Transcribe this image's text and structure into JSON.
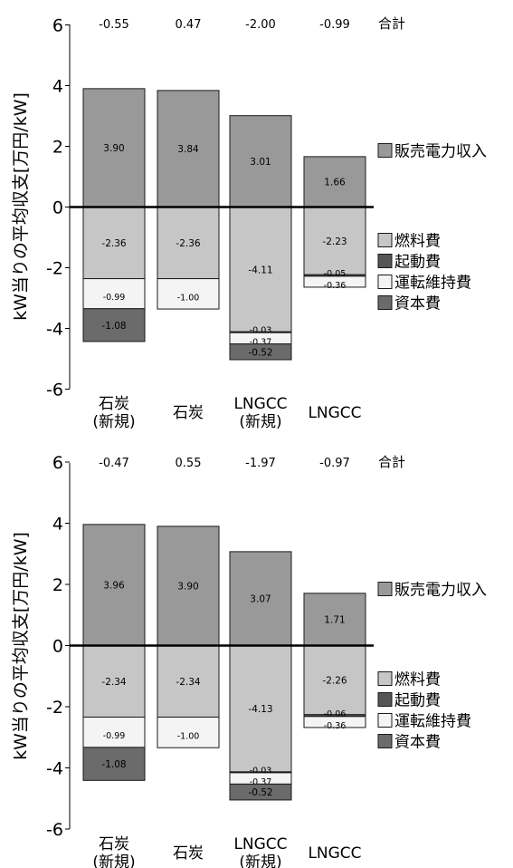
{
  "chart_data": [
    {
      "type": "bar",
      "stacked": true,
      "ylabel": "kW当りの平均収支[万円/kW]",
      "ylim": [
        -6,
        6
      ],
      "yticks": [
        "6",
        "4",
        "2",
        "0",
        "-2",
        "-4",
        "-6"
      ],
      "categories": [
        {
          "line1": "石炭",
          "line2": "(新規)"
        },
        {
          "line1": "石炭",
          "line2": ""
        },
        {
          "line1": "LNGCC",
          "line2": "(新規)"
        },
        {
          "line1": "LNGCC",
          "line2": ""
        }
      ],
      "total_label": "合計",
      "totals": [
        "-0.55",
        "0.47",
        "-2.00",
        "-0.99"
      ],
      "series": [
        {
          "name": "販売電力収入",
          "color": "#999999",
          "values": [
            3.9,
            3.84,
            3.01,
            1.66
          ],
          "labels": [
            "3.90",
            "3.84",
            "3.01",
            "1.66"
          ]
        },
        {
          "name": "燃料費",
          "color": "#c6c6c6",
          "values": [
            -2.36,
            -2.36,
            -4.11,
            -2.23
          ],
          "labels": [
            "-2.36",
            "-2.36",
            "-4.11",
            "-2.23"
          ]
        },
        {
          "name": "起動費",
          "color": "#555555",
          "values": [
            0,
            0,
            -0.03,
            -0.05
          ],
          "labels": [
            "",
            "",
            "-0.03",
            "-0.05"
          ]
        },
        {
          "name": "運転維持費",
          "color": "#f4f4f4",
          "values": [
            -0.99,
            -1.0,
            -0.37,
            -0.36
          ],
          "labels": [
            "-0.99",
            "-1.00",
            "-0.37",
            "-0.36"
          ]
        },
        {
          "name": "資本費",
          "color": "#6b6b6b",
          "values": [
            -1.08,
            0,
            -0.52,
            0
          ],
          "labels": [
            "-1.08",
            "",
            "-0.52",
            ""
          ]
        }
      ]
    },
    {
      "type": "bar",
      "stacked": true,
      "ylabel": "kW当りの平均収支[万円/kW]",
      "ylim": [
        -6,
        6
      ],
      "yticks": [
        "6",
        "4",
        "2",
        "0",
        "-2",
        "-4",
        "-6"
      ],
      "categories": [
        {
          "line1": "石炭",
          "line2": "(新規)"
        },
        {
          "line1": "石炭",
          "line2": ""
        },
        {
          "line1": "LNGCC",
          "line2": "(新規)"
        },
        {
          "line1": "LNGCC",
          "line2": ""
        }
      ],
      "total_label": "合計",
      "totals": [
        "-0.47",
        "0.55",
        "-1.97",
        "-0.97"
      ],
      "series": [
        {
          "name": "販売電力収入",
          "color": "#999999",
          "values": [
            3.96,
            3.9,
            3.07,
            1.71
          ],
          "labels": [
            "3.96",
            "3.90",
            "3.07",
            "1.71"
          ]
        },
        {
          "name": "燃料費",
          "color": "#c6c6c6",
          "values": [
            -2.34,
            -2.34,
            -4.13,
            -2.26
          ],
          "labels": [
            "-2.34",
            "-2.34",
            "-4.13",
            "-2.26"
          ]
        },
        {
          "name": "起動費",
          "color": "#555555",
          "values": [
            0,
            0,
            -0.03,
            -0.06
          ],
          "labels": [
            "",
            "",
            "-0.03",
            "-0.06"
          ]
        },
        {
          "name": "運転維持費",
          "color": "#f4f4f4",
          "values": [
            -0.99,
            -1.0,
            -0.37,
            -0.36
          ],
          "labels": [
            "-0.99",
            "-1.00",
            "-0.37",
            "-0.36"
          ]
        },
        {
          "name": "資本費",
          "color": "#6b6b6b",
          "values": [
            -1.08,
            0,
            -0.52,
            0
          ],
          "labels": [
            "-1.08",
            "",
            "-0.52",
            ""
          ]
        }
      ]
    }
  ]
}
